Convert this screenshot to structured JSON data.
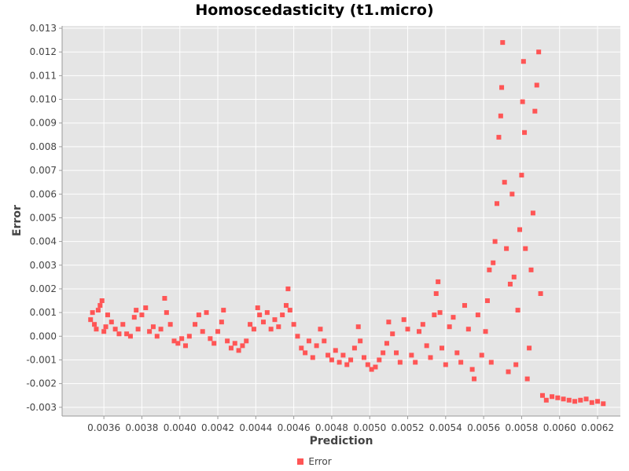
{
  "chart_data": {
    "type": "scatter",
    "title": "Homoscedasticity (t1.micro)",
    "xlabel": "Prediction",
    "ylabel": "Error",
    "xlim": [
      0.00338,
      0.00632
    ],
    "ylim": [
      -0.00337,
      0.0131
    ],
    "x_ticks": [
      "0.0036",
      "0.0038",
      "0.0040",
      "0.0042",
      "0.0044",
      "0.0046",
      "0.0048",
      "0.0050",
      "0.0052",
      "0.0054",
      "0.0056",
      "0.0058",
      "0.0060",
      "0.0062"
    ],
    "y_ticks": [
      "-0.003",
      "-0.002",
      "-0.001",
      "0.000",
      "0.001",
      "0.002",
      "0.003",
      "0.004",
      "0.005",
      "0.006",
      "0.007",
      "0.008",
      "0.009",
      "0.010",
      "0.011",
      "0.012",
      "0.013"
    ],
    "grid": true,
    "legend_position": "bottom-center",
    "series": [
      {
        "name": "Error",
        "color": "#ff5555",
        "points": [
          [
            0.00353,
            0.0007
          ],
          [
            0.00354,
            0.001
          ],
          [
            0.00355,
            0.0005
          ],
          [
            0.00356,
            0.0003
          ],
          [
            0.00357,
            0.0011
          ],
          [
            0.00358,
            0.0013
          ],
          [
            0.00359,
            0.0015
          ],
          [
            0.0036,
            0.0002
          ],
          [
            0.00361,
            0.0004
          ],
          [
            0.00362,
            0.0009
          ],
          [
            0.00364,
            0.0006
          ],
          [
            0.00366,
            0.0003
          ],
          [
            0.00368,
            0.0001
          ],
          [
            0.0037,
            0.0005
          ],
          [
            0.00372,
            0.0001
          ],
          [
            0.00374,
            0.0
          ],
          [
            0.00376,
            0.0008
          ],
          [
            0.00377,
            0.0011
          ],
          [
            0.00378,
            0.0003
          ],
          [
            0.0038,
            0.0009
          ],
          [
            0.00382,
            0.0012
          ],
          [
            0.00384,
            0.0002
          ],
          [
            0.00386,
            0.0004
          ],
          [
            0.00388,
            0.0
          ],
          [
            0.0039,
            0.0003
          ],
          [
            0.00392,
            0.0016
          ],
          [
            0.00393,
            0.001
          ],
          [
            0.00395,
            0.0005
          ],
          [
            0.00397,
            -0.0002
          ],
          [
            0.00399,
            -0.0003
          ],
          [
            0.00401,
            -0.0001
          ],
          [
            0.00403,
            -0.0004
          ],
          [
            0.00405,
            0.0
          ],
          [
            0.00408,
            0.0005
          ],
          [
            0.0041,
            0.0009
          ],
          [
            0.00412,
            0.0002
          ],
          [
            0.00414,
            0.001
          ],
          [
            0.00416,
            -0.0001
          ],
          [
            0.00418,
            -0.0003
          ],
          [
            0.0042,
            0.0002
          ],
          [
            0.00422,
            0.0006
          ],
          [
            0.00423,
            0.0011
          ],
          [
            0.00425,
            -0.0002
          ],
          [
            0.00427,
            -0.0005
          ],
          [
            0.00429,
            -0.0003
          ],
          [
            0.00431,
            -0.0006
          ],
          [
            0.00433,
            -0.0004
          ],
          [
            0.00435,
            -0.0002
          ],
          [
            0.00437,
            0.0005
          ],
          [
            0.00439,
            0.0003
          ],
          [
            0.00441,
            0.0012
          ],
          [
            0.00442,
            0.0009
          ],
          [
            0.00444,
            0.0006
          ],
          [
            0.00446,
            0.001
          ],
          [
            0.00448,
            0.0003
          ],
          [
            0.0045,
            0.0007
          ],
          [
            0.00452,
            0.0004
          ],
          [
            0.00454,
            0.0009
          ],
          [
            0.00456,
            0.0013
          ],
          [
            0.00457,
            0.002
          ],
          [
            0.00458,
            0.0011
          ],
          [
            0.0046,
            0.0005
          ],
          [
            0.00462,
            0.0
          ],
          [
            0.00464,
            -0.0005
          ],
          [
            0.00466,
            -0.0007
          ],
          [
            0.00468,
            -0.0002
          ],
          [
            0.0047,
            -0.0009
          ],
          [
            0.00472,
            -0.0004
          ],
          [
            0.00474,
            0.0003
          ],
          [
            0.00476,
            -0.0002
          ],
          [
            0.00478,
            -0.0008
          ],
          [
            0.0048,
            -0.001
          ],
          [
            0.00482,
            -0.0006
          ],
          [
            0.00484,
            -0.0011
          ],
          [
            0.00486,
            -0.0008
          ],
          [
            0.00488,
            -0.0012
          ],
          [
            0.0049,
            -0.001
          ],
          [
            0.00492,
            -0.0005
          ],
          [
            0.00494,
            0.0004
          ],
          [
            0.00495,
            -0.0002
          ],
          [
            0.00497,
            -0.0009
          ],
          [
            0.00499,
            -0.0012
          ],
          [
            0.00501,
            -0.0014
          ],
          [
            0.00503,
            -0.0013
          ],
          [
            0.00505,
            -0.001
          ],
          [
            0.00507,
            -0.0007
          ],
          [
            0.00509,
            -0.0003
          ],
          [
            0.0051,
            0.0006
          ],
          [
            0.00512,
            0.0001
          ],
          [
            0.00514,
            -0.0007
          ],
          [
            0.00516,
            -0.0011
          ],
          [
            0.00518,
            0.0007
          ],
          [
            0.0052,
            0.0003
          ],
          [
            0.00522,
            -0.0008
          ],
          [
            0.00524,
            -0.0011
          ],
          [
            0.00526,
            0.0002
          ],
          [
            0.00528,
            0.0005
          ],
          [
            0.0053,
            -0.0004
          ],
          [
            0.00532,
            -0.0009
          ],
          [
            0.00534,
            0.0009
          ],
          [
            0.00535,
            0.0018
          ],
          [
            0.00536,
            0.0023
          ],
          [
            0.00537,
            0.001
          ],
          [
            0.00538,
            -0.0005
          ],
          [
            0.0054,
            -0.0012
          ],
          [
            0.00542,
            0.0004
          ],
          [
            0.00544,
            0.0008
          ],
          [
            0.00546,
            -0.0007
          ],
          [
            0.00548,
            -0.0011
          ],
          [
            0.0055,
            0.0013
          ],
          [
            0.00552,
            0.0003
          ],
          [
            0.00554,
            -0.0014
          ],
          [
            0.00555,
            -0.0018
          ],
          [
            0.00557,
            0.0009
          ],
          [
            0.00559,
            -0.0008
          ],
          [
            0.00561,
            0.0002
          ],
          [
            0.00562,
            0.0015
          ],
          [
            0.00563,
            0.0028
          ],
          [
            0.00564,
            -0.0011
          ],
          [
            0.00565,
            0.0031
          ],
          [
            0.00566,
            0.004
          ],
          [
            0.00567,
            0.0056
          ],
          [
            0.00568,
            0.0084
          ],
          [
            0.00569,
            0.0093
          ],
          [
            0.005695,
            0.0105
          ],
          [
            0.0057,
            0.0124
          ],
          [
            0.00571,
            0.0065
          ],
          [
            0.00572,
            0.0037
          ],
          [
            0.00573,
            -0.0015
          ],
          [
            0.00574,
            0.0022
          ],
          [
            0.00575,
            0.006
          ],
          [
            0.00576,
            0.0025
          ],
          [
            0.00577,
            -0.0012
          ],
          [
            0.00578,
            0.0011
          ],
          [
            0.00579,
            0.0045
          ],
          [
            0.0058,
            0.0068
          ],
          [
            0.005805,
            0.0099
          ],
          [
            0.00581,
            0.0116
          ],
          [
            0.005815,
            0.0086
          ],
          [
            0.00582,
            0.0037
          ],
          [
            0.00583,
            -0.0018
          ],
          [
            0.00584,
            -0.0005
          ],
          [
            0.00585,
            0.0028
          ],
          [
            0.00586,
            0.0052
          ],
          [
            0.00587,
            0.0095
          ],
          [
            0.00588,
            0.0106
          ],
          [
            0.00589,
            0.012
          ],
          [
            0.0059,
            0.0018
          ],
          [
            0.00591,
            -0.0025
          ],
          [
            0.00593,
            -0.0027
          ],
          [
            0.00596,
            -0.00255
          ],
          [
            0.00599,
            -0.0026
          ],
          [
            0.00602,
            -0.00265
          ],
          [
            0.00605,
            -0.0027
          ],
          [
            0.00608,
            -0.00275
          ],
          [
            0.00611,
            -0.0027
          ],
          [
            0.00614,
            -0.00265
          ],
          [
            0.00617,
            -0.0028
          ],
          [
            0.0062,
            -0.00275
          ],
          [
            0.00623,
            -0.00285
          ]
        ]
      }
    ]
  }
}
